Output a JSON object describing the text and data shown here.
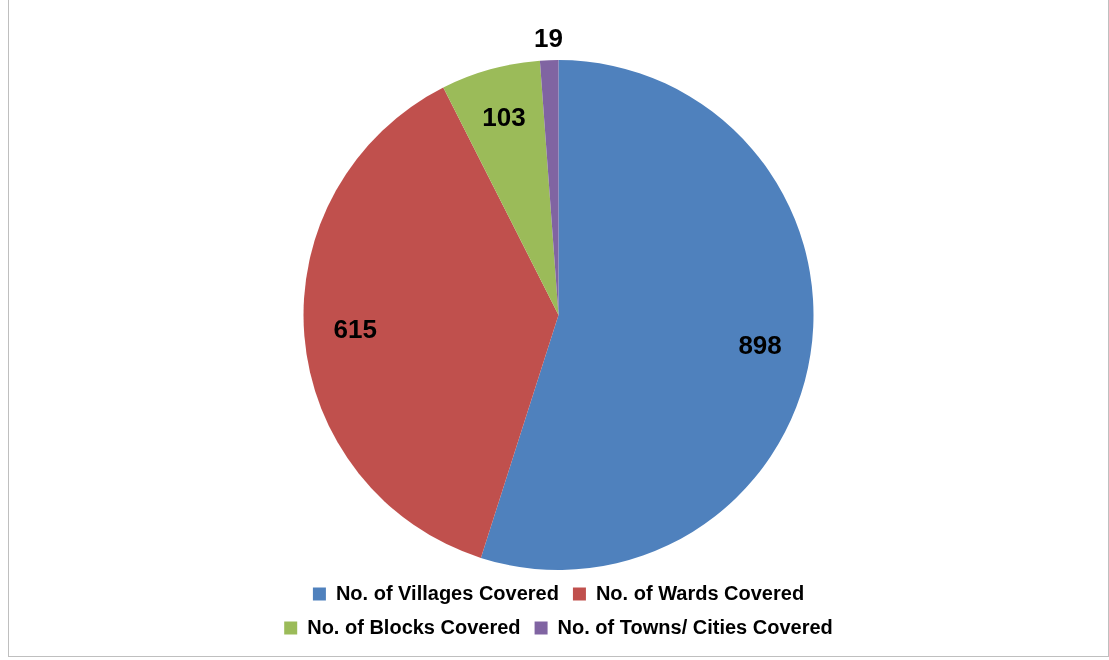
{
  "chart_data": {
    "type": "pie",
    "categories": [
      "No. of Villages Covered",
      "No. of Wards Covered",
      "No. of Blocks Covered",
      "No. of Towns/ Cities Covered"
    ],
    "values": [
      898,
      615,
      103,
      19
    ],
    "colors": [
      "#4f81bd",
      "#c0504d",
      "#9bbb59",
      "#8064a2"
    ],
    "data_labels": true,
    "legend": "bottom"
  }
}
